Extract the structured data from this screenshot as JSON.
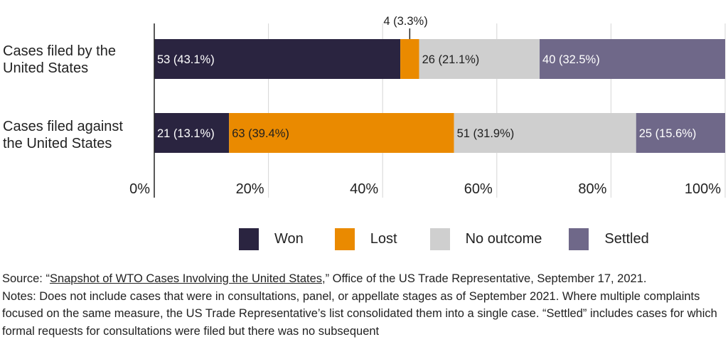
{
  "chart_data": {
    "type": "bar",
    "orientation": "horizontal",
    "stacked": true,
    "categories": [
      "Cases filed by the United States",
      "Cases filed against the United States"
    ],
    "category_lines": [
      [
        "Cases filed by the",
        "United States"
      ],
      [
        "Cases filed against",
        "the United States"
      ]
    ],
    "series": [
      {
        "name": "Won",
        "color": "#2a2440",
        "label_color": "#ffffff",
        "values": [
          43.1,
          13.1
        ],
        "labels": [
          "53 (43.1%)",
          "21 (13.1%)"
        ]
      },
      {
        "name": "Lost",
        "color": "#ea8a00",
        "label_color": "#1f1f1f",
        "values": [
          3.3,
          39.4
        ],
        "labels": [
          "4 (3.3%)",
          "63 (39.4%)"
        ]
      },
      {
        "name": "No outcome",
        "color": "#cfcfcf",
        "label_color": "#1f1f1f",
        "values": [
          21.1,
          31.9
        ],
        "labels": [
          "26 (21.1%)",
          "51 (31.9%)"
        ]
      },
      {
        "name": "Settled",
        "color": "#6f6889",
        "label_color": "#ffffff",
        "values": [
          32.5,
          15.6
        ],
        "labels": [
          "40 (32.5%)",
          "25 (15.6%)"
        ]
      }
    ],
    "xlim": [
      0,
      100
    ],
    "xticks": [
      "0%",
      "20%",
      "40%",
      "60%",
      "80%",
      "100%"
    ],
    "grid": true,
    "legend_position": "bottom-right"
  },
  "footer": {
    "source_prefix": "Source: “",
    "source_link": "Snapshot of WTO Cases Involving the United States",
    "source_suffix": ",” Office of the US Trade Representative, September 17, 2021.",
    "notes": "Notes: Does not include cases that were in consultations, panel, or appellate stages as of September 2021. Where multiple complaints focused on the same measure, the US Trade Representative’s list consolidated them into a single case. “Settled” includes cases for which formal requests for consultations were filed but there was no subsequent"
  }
}
